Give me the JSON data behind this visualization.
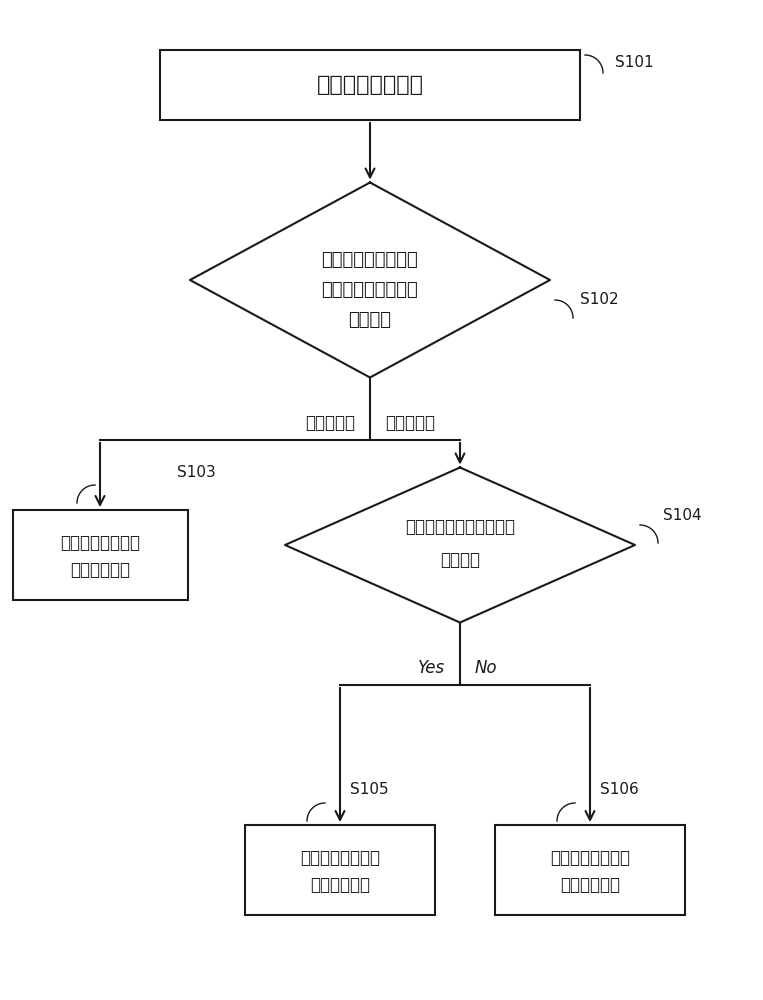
{
  "bg_color": "#ffffff",
  "line_color": "#1a1a1a",
  "box_fill": "#ffffff",
  "box_edge": "#1a1a1a",
  "text_color": "#1a1a1a",
  "arrow_color": "#1a1a1a",
  "s101_label": "S101",
  "s102_label": "S102",
  "s103_label": "S103",
  "s104_label": "S104",
  "s105_label": "S105",
  "s106_label": "S106",
  "box1_text": "采用风况识别方法",
  "diamond1_line1": "判断当前风向的类型",
  "diamond1_line2": "为趋势型风向还是波",
  "diamond1_line3": "动型风向",
  "box3_line1": "在偏航停止时，采",
  "box3_line2": "用欠偏航控制",
  "diamond2_line1": "判断所述趋势型风向是否",
  "diamond2_line2": "为调头风",
  "box5_line1": "在偏航停止时，采",
  "box5_line2": "用欠偏航控制",
  "box6_line1": "在偏航停止时，采",
  "box6_line2": "用过偏航控制",
  "label_left": "波动型风向",
  "label_right": "趋势型风向",
  "label_yes": "Yes",
  "label_no": "No"
}
